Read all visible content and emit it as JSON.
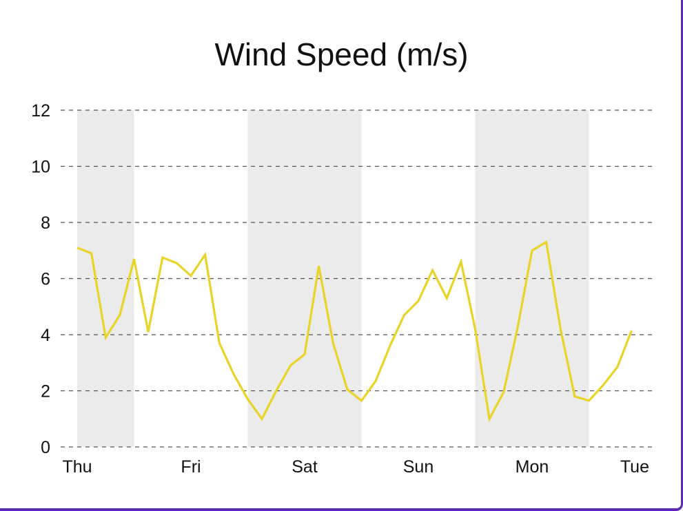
{
  "chart_data": {
    "type": "line",
    "title": "Wind Speed (m/s)",
    "xlabel": "",
    "ylabel": "",
    "x_tick_labels": [
      "Thu",
      "Fri",
      "Sat",
      "Sun",
      "Mon",
      "Tue"
    ],
    "y_ticks": [
      0,
      2,
      4,
      6,
      8,
      10,
      12
    ],
    "ylim": [
      0,
      12
    ],
    "xlim": [
      0,
      117
    ],
    "x_tick_positions": [
      0,
      24,
      48,
      72,
      96,
      120
    ],
    "grid": "horizontal-dashed",
    "legend": "none",
    "night_bands": [
      [
        0,
        12
      ],
      [
        36,
        60
      ],
      [
        84,
        108
      ]
    ],
    "series": [
      {
        "color": "#e8d327",
        "x": [
          0,
          3,
          6,
          9,
          12,
          15,
          18,
          21,
          24,
          27,
          30,
          33,
          36,
          39,
          42,
          45,
          48,
          51,
          54,
          57,
          60,
          63,
          66,
          69,
          72,
          75,
          78,
          81,
          84,
          87,
          90,
          93,
          96,
          99,
          102,
          105,
          108,
          111,
          114,
          117
        ],
        "values": [
          7.1,
          6.9,
          3.9,
          4.7,
          6.7,
          4.1,
          6.75,
          6.55,
          6.1,
          6.85,
          3.7,
          2.6,
          1.7,
          1.0,
          2.0,
          2.9,
          3.3,
          6.45,
          3.7,
          2.05,
          1.65,
          2.35,
          3.6,
          4.7,
          5.2,
          6.3,
          5.3,
          6.6,
          4.2,
          1.0,
          1.95,
          4.3,
          7.0,
          7.3,
          4.2,
          1.8,
          1.65,
          2.2,
          2.85,
          4.15
        ]
      }
    ],
    "colors": {
      "line": "#e8d327",
      "band": "#ebebeb",
      "grid": "#555555",
      "frame_accent": "#5b2bb5"
    }
  }
}
